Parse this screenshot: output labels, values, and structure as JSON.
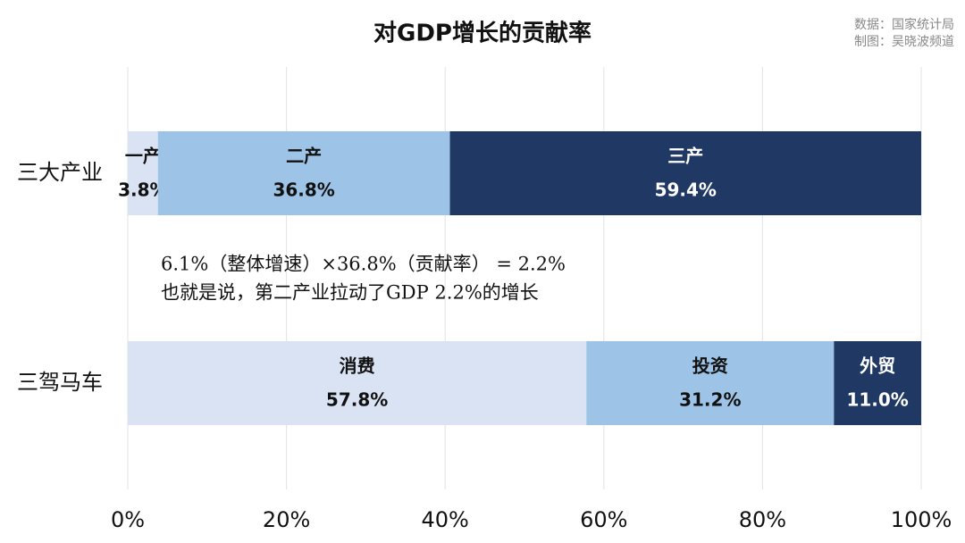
{
  "chart_data": {
    "type": "bar",
    "orientation": "horizontal",
    "stacked": true,
    "title": "对GDP增长的贡献率",
    "source": [
      "数据：国家统计局",
      "制图：吴晓波频道"
    ],
    "categories": [
      "三大产业",
      "三驾马车"
    ],
    "rows": [
      {
        "segments": [
          {
            "name": "一产",
            "value": 3.8,
            "value_label": "3.8%",
            "color": "#dae3f3"
          },
          {
            "name": "二产",
            "value": 36.8,
            "value_label": "36.8%",
            "color": "#9dc3e6"
          },
          {
            "name": "三产",
            "value": 59.4,
            "value_label": "59.4%",
            "color": "#203864"
          }
        ]
      },
      {
        "segments": [
          {
            "name": "消费",
            "value": 57.8,
            "value_label": "57.8%",
            "color": "#dae3f3"
          },
          {
            "name": "投资",
            "value": 31.2,
            "value_label": "31.2%",
            "color": "#9dc3e6"
          },
          {
            "name": "外贸",
            "value": 11.0,
            "value_label": "11.0%",
            "color": "#203864"
          }
        ]
      }
    ],
    "annotations": [
      "6.1%（整体增速）×36.8%（贡献率） = 2.2%",
      "也就是说，第二产业拉动了GDP 2.2%的增长"
    ],
    "xlim": [
      0,
      100
    ],
    "xticks": [
      {
        "value": 0,
        "label": "0%"
      },
      {
        "value": 20,
        "label": "20%"
      },
      {
        "value": 40,
        "label": "40%"
      },
      {
        "value": 60,
        "label": "60%"
      },
      {
        "value": 80,
        "label": "80%"
      },
      {
        "value": 100,
        "label": "100%"
      }
    ],
    "grid": true
  }
}
